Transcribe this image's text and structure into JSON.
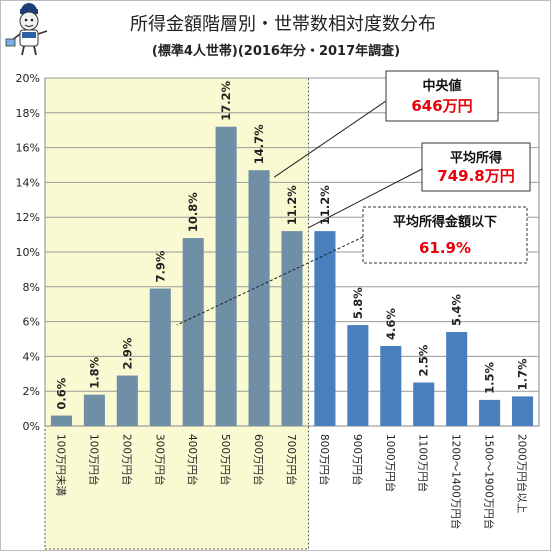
{
  "chart_data": {
    "type": "bar",
    "title": "所得金額階層別・世帯数相対度数分布",
    "subtitle": "(標準4人世帯)(2016年分・2017年調査)",
    "categories": [
      "100万円未満",
      "100万円台",
      "200万円台",
      "300万円台",
      "400万円台",
      "500万円台",
      "600万円台",
      "700万円台",
      "800万円台",
      "900万円台",
      "1000万円台",
      "1100万円台",
      "1200〜1400万円台",
      "1500〜1900万円台",
      "2000万円台以上"
    ],
    "values": [
      0.6,
      1.8,
      2.9,
      7.9,
      10.8,
      17.2,
      14.7,
      11.2,
      11.2,
      5.8,
      4.6,
      2.5,
      5.4,
      1.5,
      1.7
    ],
    "value_labels": [
      "0.6%",
      "1.8%",
      "2.9%",
      "7.9%",
      "10.8%",
      "17.2%",
      "14.7%",
      "11.2%",
      "11.2%",
      "5.8%",
      "4.6%",
      "2.5%",
      "5.4%",
      "1.5%",
      "1.7%"
    ],
    "y_ticks": [
      "0%",
      "2%",
      "4%",
      "6%",
      "8%",
      "10%",
      "12%",
      "14%",
      "16%",
      "18%",
      "20%"
    ],
    "ylim": [
      0,
      20
    ],
    "grid": true,
    "highlight_range": {
      "start_index": 0,
      "end_index": 7,
      "fill": "#fafad2",
      "border": "#555555"
    },
    "bar_colors": {
      "inside_highlight": "#6e8fa5",
      "outside_highlight": "#4a7fbd"
    },
    "annotations": [
      {
        "id": "median",
        "label": "中央値",
        "value": "646万円",
        "target_x_index": 6.46,
        "target_value": 14.3
      },
      {
        "id": "mean",
        "label": "平均所得",
        "value": "749.8万円",
        "target_x_index": 7.5,
        "target_value": 11.4
      },
      {
        "id": "below_mean",
        "label": "平均所得金額以下",
        "value": "61.9%",
        "target_x_index": 3.5,
        "target_value": 5.8
      }
    ],
    "value_color": "#e8000b"
  }
}
